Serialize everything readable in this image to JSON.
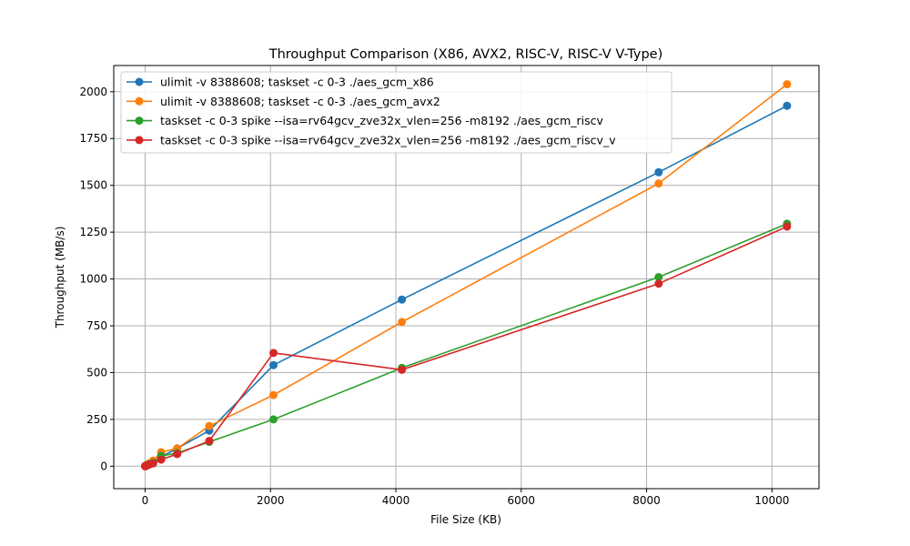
{
  "chart_data": {
    "type": "line",
    "title": "Throughput Comparison (X86, AVX2, RISC-V, RISC-V V-Type)",
    "xlabel": "File Size (KB)",
    "ylabel": "Throughput (MB/s)",
    "xlim": [
      -500,
      10750
    ],
    "ylim": [
      -120,
      2140
    ],
    "xticks": [
      0,
      2000,
      4000,
      6000,
      8000,
      10000
    ],
    "yticks": [
      0,
      250,
      500,
      750,
      1000,
      1250,
      1500,
      1750,
      2000
    ],
    "grid": true,
    "legend_position": "upper-left",
    "x": [
      1,
      2,
      4,
      8,
      16,
      32,
      64,
      128,
      256,
      512,
      1024,
      2048,
      4096,
      8192,
      10240
    ],
    "series": [
      {
        "name": "ulimit -v 8388608; taskset -c 0-3 ./aes_gcm_x86",
        "color": "#1f77b4",
        "values": [
          0.2,
          0.4,
          0.8,
          1.6,
          3,
          6,
          12,
          25,
          50,
          95,
          190,
          540,
          890,
          1570,
          1925
        ]
      },
      {
        "name": "ulimit -v 8388608; taskset -c 0-3 ./aes_gcm_avx2",
        "color": "#ff7f0e",
        "values": [
          0.3,
          0.5,
          1,
          2,
          4,
          8,
          15,
          30,
          75,
          95,
          215,
          380,
          770,
          1510,
          2040
        ]
      },
      {
        "name": "taskset -c 0-3 spike --isa=rv64gcv_zve32x_vlen=256 -m8192 ./aes_gcm_riscv",
        "color": "#2ca02c",
        "values": [
          0.1,
          0.3,
          0.6,
          1.2,
          2.5,
          5,
          10,
          18,
          55,
          70,
          130,
          250,
          525,
          1010,
          1295
        ]
      },
      {
        "name": "taskset -c 0-3 spike --isa=rv64gcv_zve32x_vlen=256 -m8192 ./aes_gcm_riscv_v",
        "color": "#d62728",
        "values": [
          0.1,
          0.2,
          0.5,
          1,
          2,
          4,
          8,
          15,
          35,
          65,
          135,
          605,
          515,
          975,
          1280
        ]
      }
    ]
  }
}
